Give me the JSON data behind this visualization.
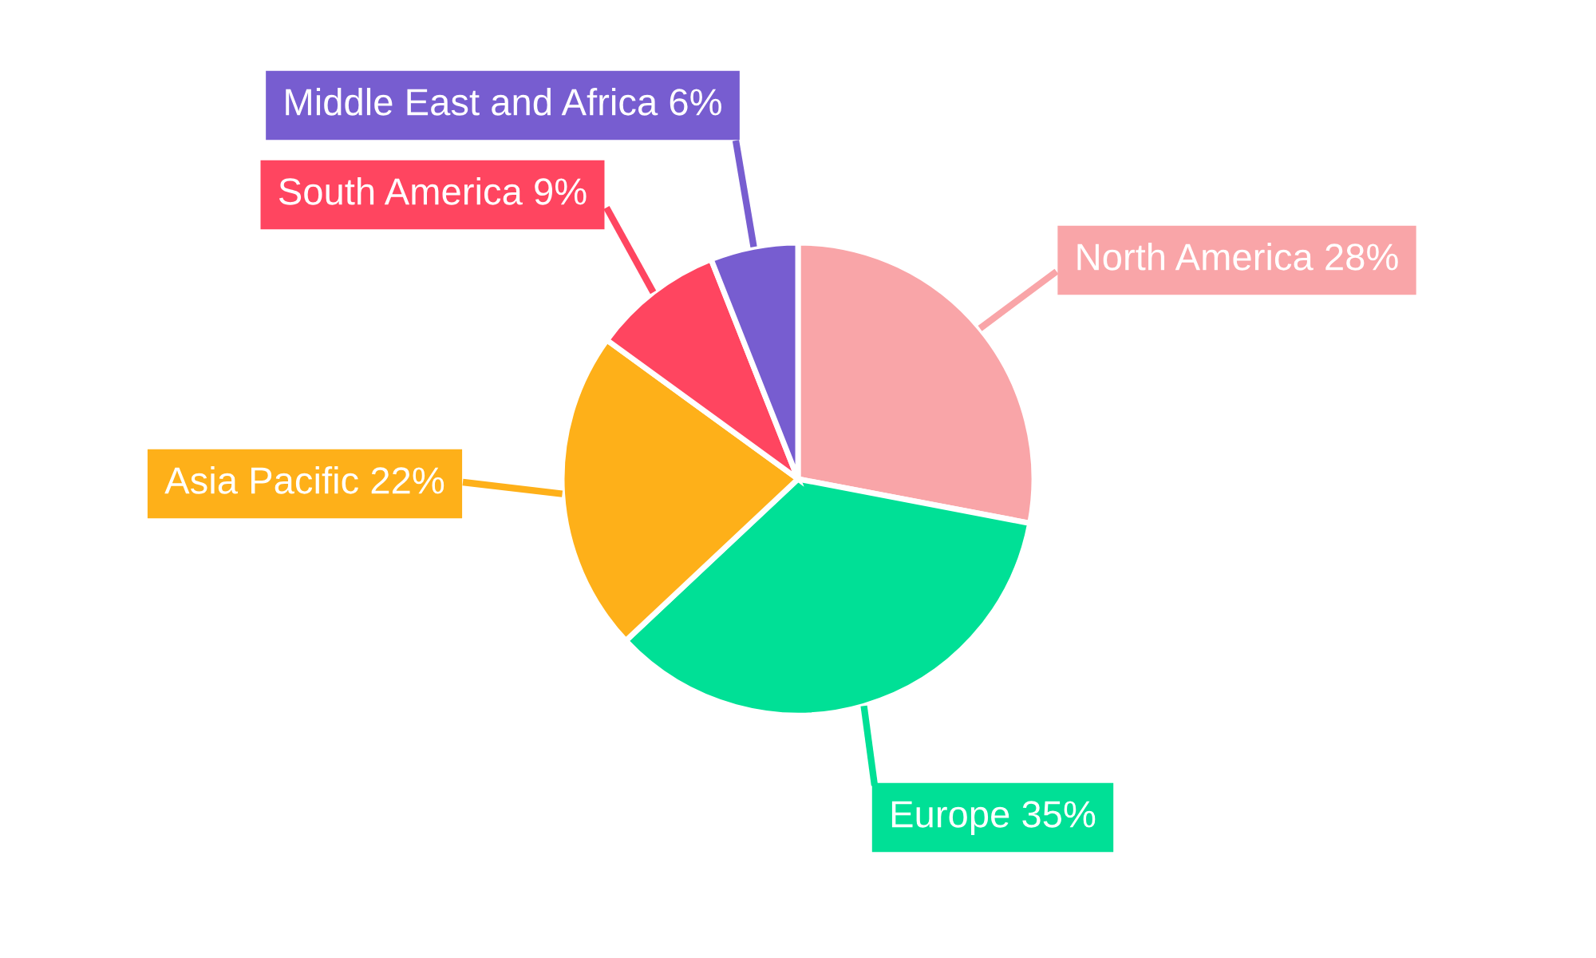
{
  "chart_data": {
    "type": "pie",
    "categories": [
      "North America",
      "Europe",
      "Asia Pacific",
      "South America",
      "Middle East and Africa"
    ],
    "values": [
      28,
      35,
      22,
      9,
      6
    ],
    "value_labels": [
      "28%",
      "35%",
      "22%",
      "9%",
      "6%"
    ],
    "colors": [
      "#f9a5a8",
      "#00e096",
      "#feb019",
      "#ff4560",
      "#775dd0"
    ],
    "legend": false
  }
}
